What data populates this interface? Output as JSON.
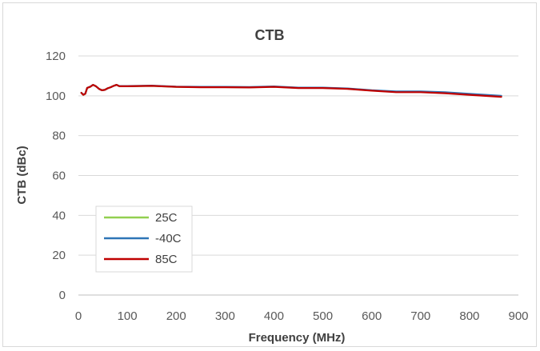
{
  "chart_data": {
    "type": "line",
    "title": "CTB",
    "xlabel": "Frequency (MHz)",
    "ylabel": "CTB (dBc)",
    "xlim": [
      0,
      900
    ],
    "ylim": [
      0,
      120
    ],
    "xticks": [
      0,
      100,
      200,
      300,
      400,
      500,
      600,
      700,
      800,
      900
    ],
    "yticks": [
      0,
      20,
      40,
      60,
      80,
      100,
      120
    ],
    "grid": "horizontal",
    "legend_position": "bottom-left",
    "series": [
      {
        "name": "25C",
        "color": "#92d050",
        "x": [
          6,
          10,
          14,
          18,
          24,
          30,
          36,
          42,
          48,
          54,
          60,
          66,
          72,
          78,
          84,
          100,
          150,
          200,
          250,
          300,
          350,
          400,
          450,
          500,
          550,
          600,
          650,
          700,
          750,
          800,
          865
        ],
        "y": [
          101.5,
          100.5,
          101,
          104,
          104.5,
          105.5,
          104.8,
          103.5,
          102.8,
          103,
          103.8,
          104.3,
          105,
          105.5,
          104.8,
          104.8,
          105,
          104.5,
          104.4,
          104.4,
          104.3,
          104.6,
          104,
          104,
          103.6,
          102.7,
          102,
          102,
          101.5,
          100.8,
          99.8
        ]
      },
      {
        "name": "-40C",
        "color": "#2e75b6",
        "x": [
          6,
          10,
          14,
          18,
          24,
          30,
          36,
          42,
          48,
          54,
          60,
          66,
          72,
          78,
          84,
          100,
          150,
          200,
          250,
          300,
          350,
          400,
          450,
          500,
          550,
          600,
          650,
          700,
          750,
          800,
          865
        ],
        "y": [
          101.5,
          100.6,
          101.1,
          104,
          104.6,
          105.5,
          104.8,
          103.5,
          102.8,
          103,
          103.8,
          104.3,
          105,
          105.5,
          104.9,
          104.9,
          105.1,
          104.6,
          104.5,
          104.5,
          104.4,
          104.7,
          104.1,
          104.1,
          103.7,
          102.8,
          102.2,
          102.2,
          101.8,
          101,
          100
        ]
      },
      {
        "name": "85C",
        "color": "#c00000",
        "x": [
          6,
          10,
          14,
          18,
          24,
          30,
          36,
          42,
          48,
          54,
          60,
          66,
          72,
          78,
          84,
          100,
          150,
          200,
          250,
          300,
          350,
          400,
          450,
          500,
          550,
          600,
          650,
          700,
          750,
          800,
          865
        ],
        "y": [
          101.5,
          100.5,
          101,
          104,
          104.5,
          105.5,
          104.8,
          103.5,
          102.8,
          103,
          103.8,
          104.3,
          105,
          105.5,
          104.8,
          104.8,
          105,
          104.5,
          104.3,
          104.3,
          104.2,
          104.5,
          103.9,
          103.9,
          103.5,
          102.6,
          101.8,
          101.8,
          101.3,
          100.5,
          99.5
        ]
      }
    ]
  }
}
